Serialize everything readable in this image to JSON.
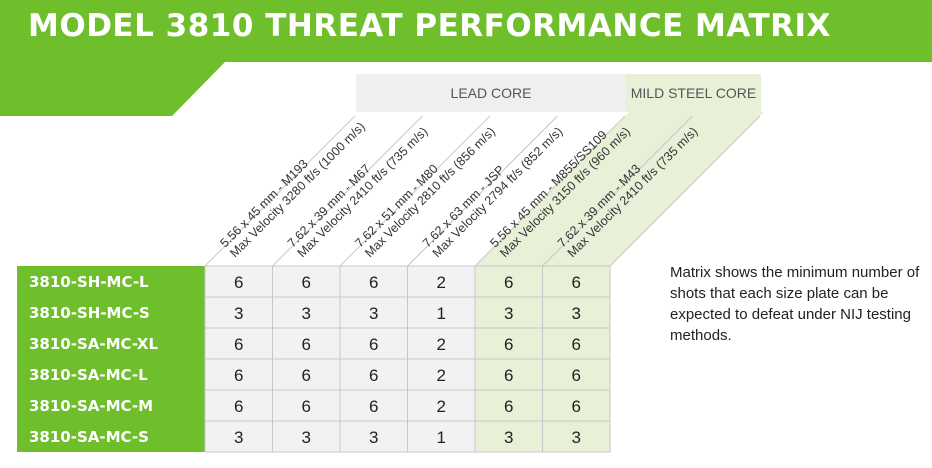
{
  "title": "MODEL 3810 THREAT PERFORMANCE MATRIX",
  "colors": {
    "brand_green": "#6fbe2b",
    "lead_cell": "#f2f2f2",
    "mild_cell": "#e8f0d8",
    "grid_line": "#c8c8c8"
  },
  "groups": {
    "lead_core": "LEAD CORE",
    "mild_steel_core": "MILD STEEL CORE"
  },
  "columns": [
    {
      "line1": "5.56 x 45 mm - M193",
      "line2": "Max Velocity 3280 ft/s (1000 m/s)",
      "group": "lead"
    },
    {
      "line1": "7.62 x 39 mm - M67",
      "line2": "Max Velocity 2410 ft/s (735 m/s)",
      "group": "lead"
    },
    {
      "line1": "7.62 x 51 mm - M80",
      "line2": "Max Velocity 2810 ft/s (856 m/s)",
      "group": "lead"
    },
    {
      "line1": "7.62 x 63 mm - JSP",
      "line2": "Max Velocity 2794 ft/s (852 m/s)",
      "group": "lead"
    },
    {
      "line1": "5.56 x 45 mm - M855/SS109",
      "line2": "Max Velocity 3150 ft/s (960 m/s)",
      "group": "mild"
    },
    {
      "line1": "7.62 x 39 mm - M43",
      "line2": "Max Velocity 2410 ft/s (735 m/s)",
      "group": "mild"
    }
  ],
  "rows": [
    {
      "label": "3810-SH-MC-L",
      "values": [
        6,
        6,
        6,
        2,
        6,
        6
      ]
    },
    {
      "label": "3810-SH-MC-S",
      "values": [
        3,
        3,
        3,
        1,
        3,
        3
      ]
    },
    {
      "label": "3810-SA-MC-XL",
      "values": [
        6,
        6,
        6,
        2,
        6,
        6
      ]
    },
    {
      "label": "3810-SA-MC-L",
      "values": [
        6,
        6,
        6,
        2,
        6,
        6
      ]
    },
    {
      "label": "3810-SA-MC-M",
      "values": [
        6,
        6,
        6,
        2,
        6,
        6
      ]
    },
    {
      "label": "3810-SA-MC-S",
      "values": [
        3,
        3,
        3,
        1,
        3,
        3
      ]
    }
  ],
  "note": "Matrix shows the minimum number of shots that each size plate can be expected to defeat under NIJ testing methods."
}
